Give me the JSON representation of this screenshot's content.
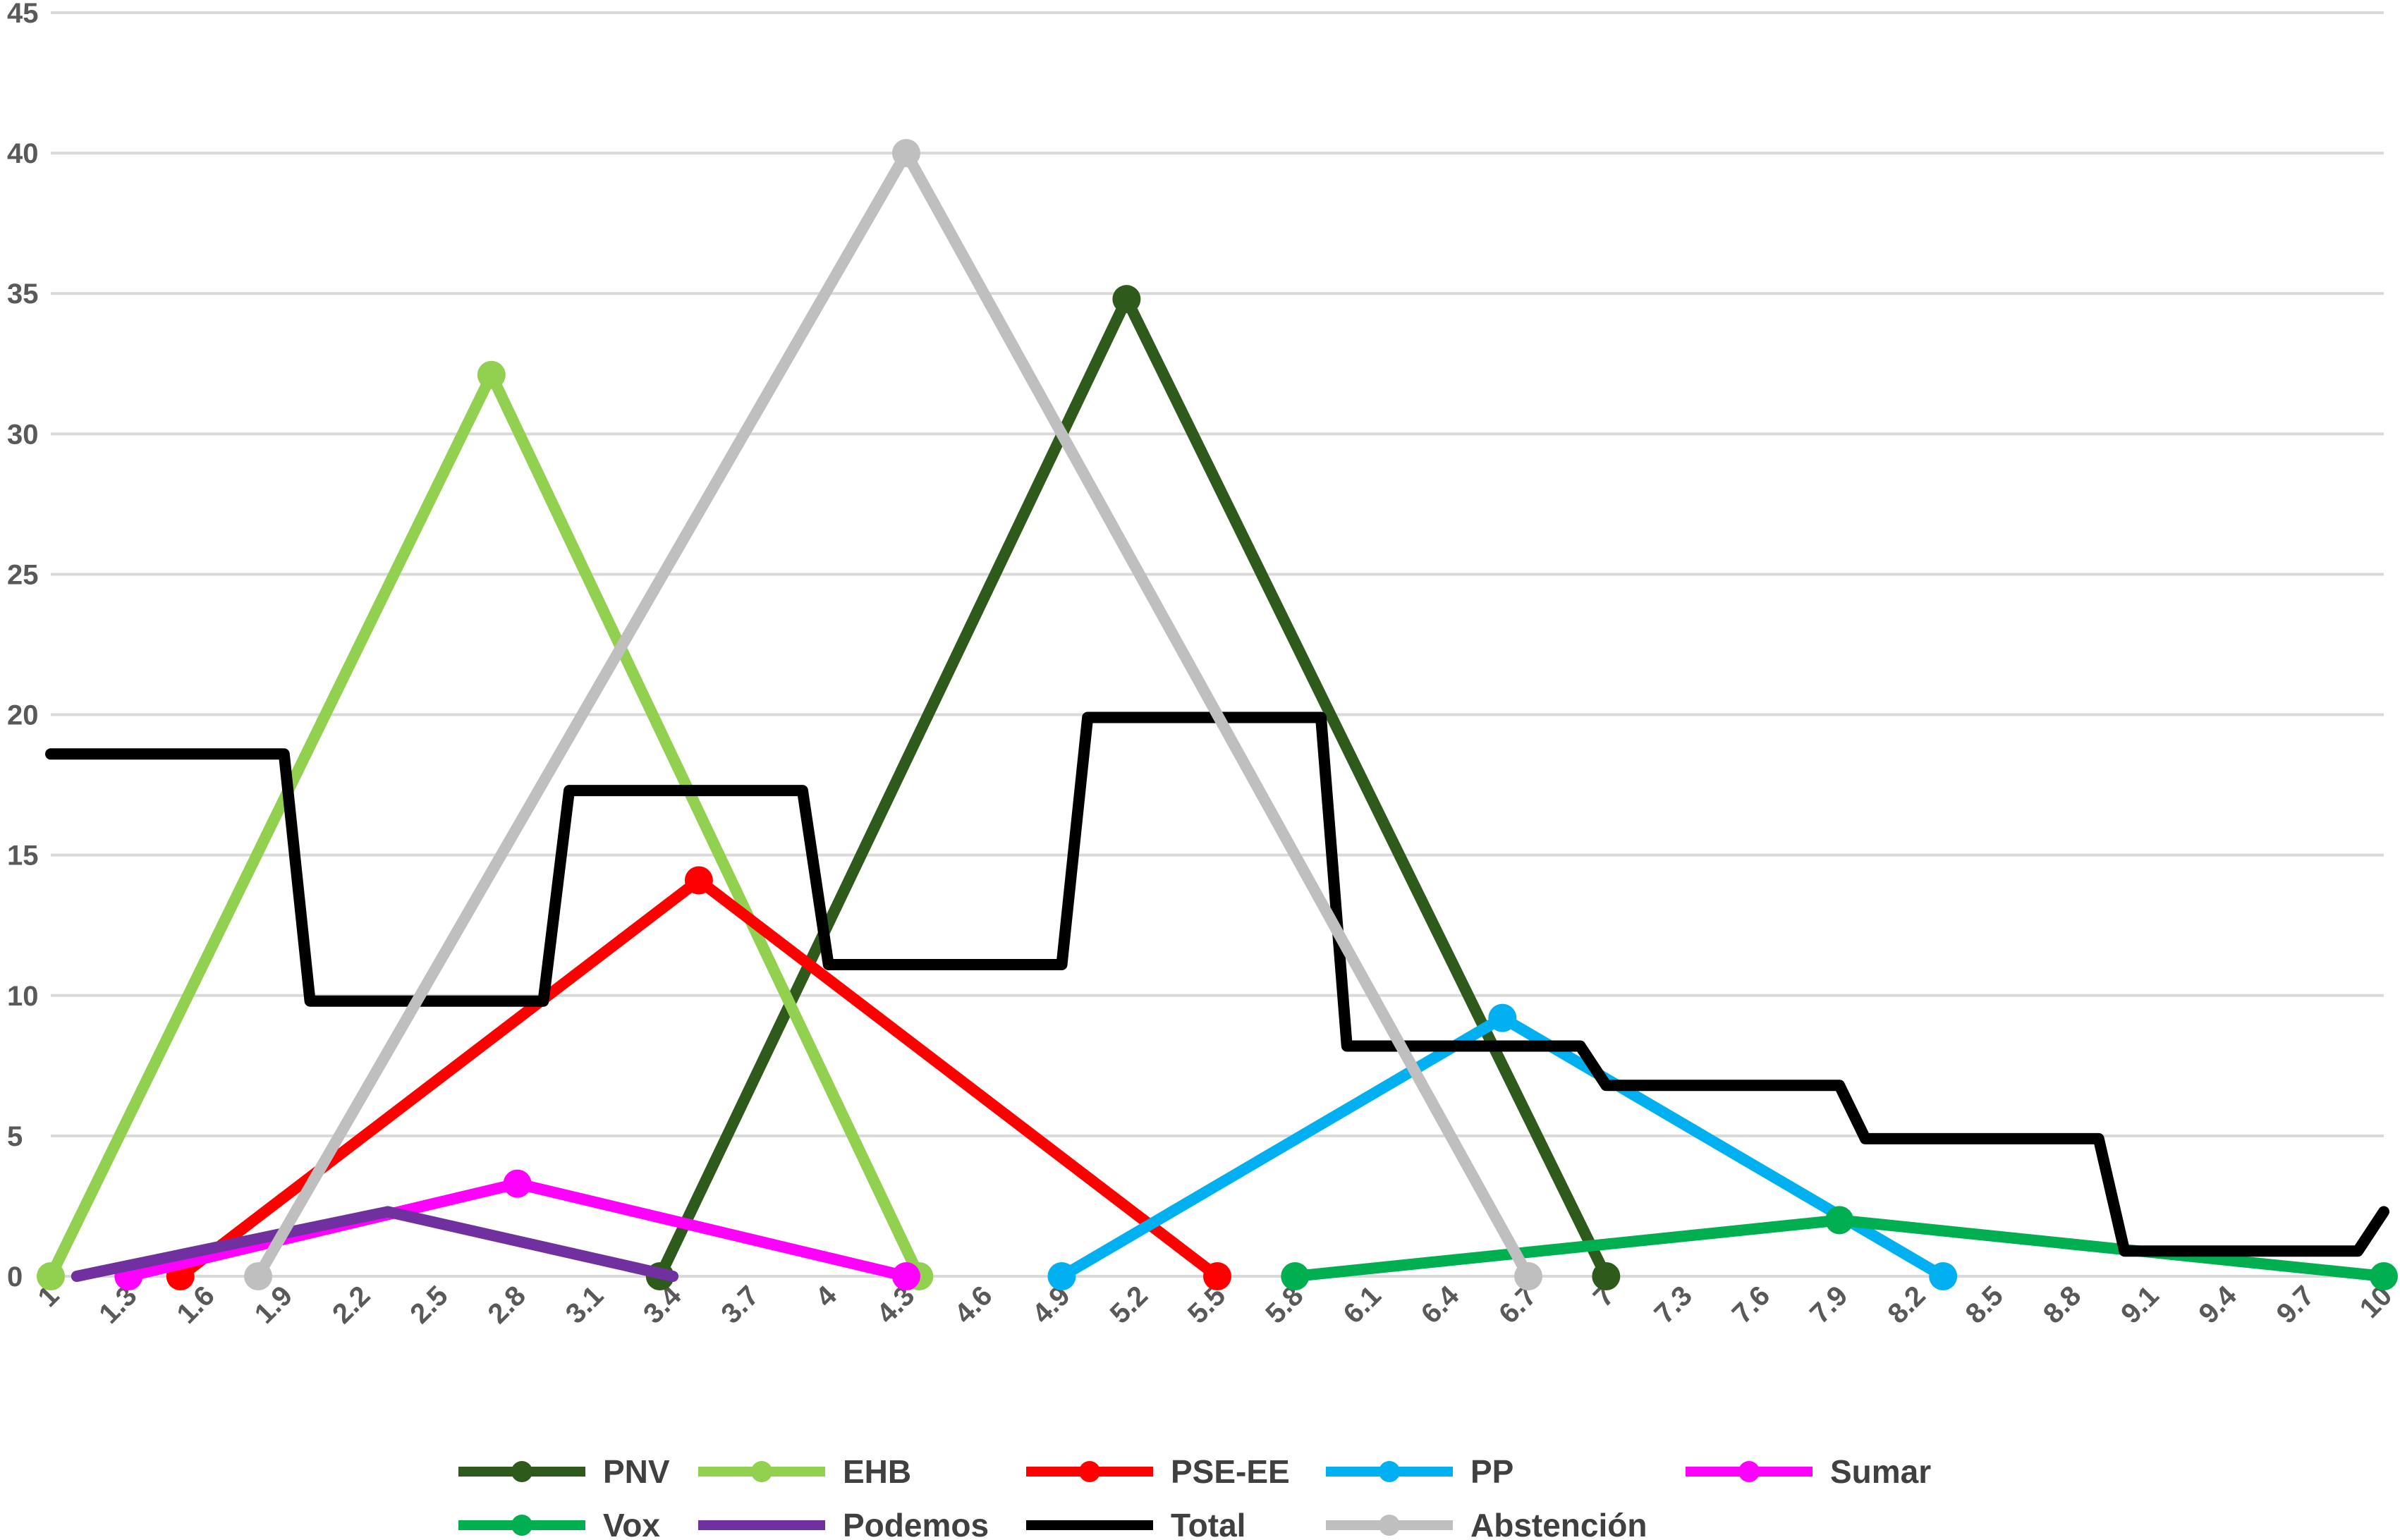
{
  "chart_data": {
    "type": "line",
    "x_ticks": [
      "1",
      "1.3",
      "1.6",
      "1.9",
      "2.2",
      "2.5",
      "2.8",
      "3.1",
      "3.4",
      "3.7",
      "4",
      "4.3",
      "4.6",
      "4.9",
      "5.2",
      "5.5",
      "5.8",
      "6.1",
      "6.4",
      "6.7",
      "7",
      "7.3",
      "7.6",
      "7.9",
      "8.2",
      "8.5",
      "8.8",
      "9.1",
      "9.4",
      "9.7",
      "10"
    ],
    "y_ticks": [
      "0",
      "5",
      "10",
      "15",
      "20",
      "25",
      "30",
      "35",
      "40",
      "45"
    ],
    "xlim": [
      1,
      10
    ],
    "ylim": [
      0,
      45
    ],
    "grid": "horizontal",
    "legend_position": "bottom",
    "series": [
      {
        "name": "PNV",
        "color": "#2e5a1c",
        "markers": true,
        "points": [
          [
            3.35,
            0
          ],
          [
            5.15,
            34.8
          ],
          [
            7.0,
            0
          ]
        ]
      },
      {
        "name": "EHB",
        "color": "#92d050",
        "markers": true,
        "points": [
          [
            1.0,
            0
          ],
          [
            2.7,
            32.1
          ],
          [
            4.35,
            0
          ]
        ]
      },
      {
        "name": "PSE-EE",
        "color": "#ff0000",
        "markers": true,
        "points": [
          [
            1.5,
            0
          ],
          [
            3.5,
            14.1
          ],
          [
            5.5,
            0
          ]
        ]
      },
      {
        "name": "PP",
        "color": "#00b0f0",
        "markers": true,
        "points": [
          [
            4.9,
            0
          ],
          [
            6.6,
            9.2
          ],
          [
            8.3,
            0
          ]
        ]
      },
      {
        "name": "Sumar",
        "color": "#ff00ff",
        "markers": true,
        "points": [
          [
            1.3,
            0
          ],
          [
            2.8,
            3.3
          ],
          [
            4.3,
            0
          ]
        ]
      },
      {
        "name": "Vox",
        "color": "#00b050",
        "markers": true,
        "points": [
          [
            5.8,
            0
          ],
          [
            7.9,
            2.0
          ],
          [
            10.0,
            0
          ]
        ]
      },
      {
        "name": "Podemos",
        "color": "#7030a0",
        "markers": false,
        "points": [
          [
            1.1,
            0
          ],
          [
            2.3,
            2.3
          ],
          [
            3.4,
            0
          ]
        ]
      },
      {
        "name": "Total",
        "color": "#000000",
        "markers": false,
        "points": [
          [
            1.0,
            18.6
          ],
          [
            1.9,
            18.6
          ],
          [
            2.0,
            9.8
          ],
          [
            2.9,
            9.8
          ],
          [
            3.0,
            17.3
          ],
          [
            3.9,
            17.3
          ],
          [
            4.0,
            11.1
          ],
          [
            4.9,
            11.1
          ],
          [
            5.0,
            19.9
          ],
          [
            5.9,
            19.9
          ],
          [
            6.0,
            8.2
          ],
          [
            6.9,
            8.2
          ],
          [
            7.0,
            6.8
          ],
          [
            7.9,
            6.8
          ],
          [
            8.0,
            4.9
          ],
          [
            8.9,
            4.9
          ],
          [
            9.0,
            0.9
          ],
          [
            9.9,
            0.9
          ],
          [
            10.0,
            2.3
          ]
        ]
      },
      {
        "name": "Abstención",
        "color": "#bfbfbf",
        "markers": true,
        "points": [
          [
            1.8,
            0
          ],
          [
            4.3,
            40.0
          ],
          [
            6.7,
            0
          ]
        ]
      }
    ]
  }
}
